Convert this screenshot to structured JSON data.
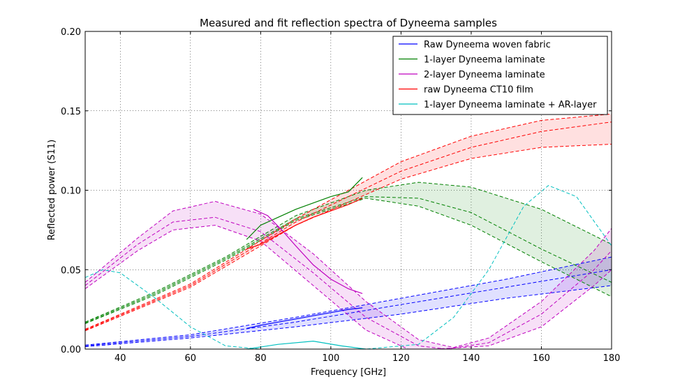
{
  "chart_data": {
    "type": "line",
    "title": "Measured and fit reflection spectra of Dyneema samples",
    "xlabel": "Frequency [GHz]",
    "ylabel": "Reflected power (S11)",
    "xlim": [
      30,
      180
    ],
    "ylim": [
      0,
      0.2
    ],
    "xticks": [
      "40",
      "60",
      "80",
      "100",
      "120",
      "140",
      "160",
      "180"
    ],
    "yticks": [
      "0.00",
      "0.05",
      "0.10",
      "0.15",
      "0.20"
    ],
    "grid": true,
    "legend_position": "top-right",
    "series": [
      {
        "name": "Raw Dyneema woven fabric",
        "color": "#0000ff",
        "measured": [
          [
            76,
            0.013
          ],
          [
            80,
            0.015
          ],
          [
            85,
            0.017
          ],
          [
            90,
            0.019
          ],
          [
            95,
            0.021
          ],
          [
            100,
            0.023
          ],
          [
            105,
            0.025
          ],
          [
            109,
            0.026
          ]
        ],
        "fit_upper": [
          [
            30,
            0.0025
          ],
          [
            60,
            0.009
          ],
          [
            90,
            0.02
          ],
          [
            120,
            0.032
          ],
          [
            150,
            0.044
          ],
          [
            180,
            0.058
          ]
        ],
        "fit_mid": [
          [
            30,
            0.002
          ],
          [
            60,
            0.008
          ],
          [
            90,
            0.017
          ],
          [
            120,
            0.028
          ],
          [
            150,
            0.039
          ],
          [
            180,
            0.05
          ]
        ],
        "fit_lower": [
          [
            30,
            0.0015
          ],
          [
            60,
            0.007
          ],
          [
            90,
            0.014
          ],
          [
            120,
            0.022
          ],
          [
            150,
            0.032
          ],
          [
            180,
            0.04
          ]
        ]
      },
      {
        "name": "1-layer Dyneema laminate",
        "color": "#008000",
        "measured": [
          [
            76,
            0.069
          ],
          [
            80,
            0.078
          ],
          [
            85,
            0.083
          ],
          [
            90,
            0.088
          ],
          [
            95,
            0.092
          ],
          [
            100,
            0.096
          ],
          [
            105,
            0.099
          ],
          [
            109,
            0.108
          ]
        ],
        "fit_upper": [
          [
            30,
            0.017
          ],
          [
            50,
            0.036
          ],
          [
            70,
            0.058
          ],
          [
            90,
            0.084
          ],
          [
            110,
            0.1
          ],
          [
            125,
            0.105
          ],
          [
            140,
            0.102
          ],
          [
            160,
            0.088
          ],
          [
            180,
            0.066
          ]
        ],
        "fit_mid": [
          [
            30,
            0.0165
          ],
          [
            50,
            0.035
          ],
          [
            70,
            0.057
          ],
          [
            90,
            0.082
          ],
          [
            110,
            0.096
          ],
          [
            125,
            0.095
          ],
          [
            140,
            0.086
          ],
          [
            160,
            0.063
          ],
          [
            180,
            0.042
          ]
        ],
        "fit_lower": [
          [
            30,
            0.016
          ],
          [
            50,
            0.034
          ],
          [
            70,
            0.056
          ],
          [
            90,
            0.081
          ],
          [
            110,
            0.095
          ],
          [
            125,
            0.09
          ],
          [
            140,
            0.078
          ],
          [
            160,
            0.055
          ],
          [
            180,
            0.033
          ]
        ]
      },
      {
        "name": "2-layer Dyneema laminate",
        "color": "#bf00bf",
        "measured": [
          [
            78,
            0.088
          ],
          [
            82,
            0.084
          ],
          [
            86,
            0.075
          ],
          [
            90,
            0.065
          ],
          [
            95,
            0.053
          ],
          [
            100,
            0.044
          ],
          [
            105,
            0.038
          ],
          [
            109,
            0.035
          ]
        ],
        "fit_upper": [
          [
            30,
            0.042
          ],
          [
            45,
            0.07
          ],
          [
            55,
            0.087
          ],
          [
            67,
            0.093
          ],
          [
            80,
            0.085
          ],
          [
            95,
            0.06
          ],
          [
            110,
            0.03
          ],
          [
            125,
            0.006
          ],
          [
            135,
            0.001
          ],
          [
            145,
            0.007
          ],
          [
            160,
            0.03
          ],
          [
            175,
            0.062
          ],
          [
            180,
            0.076
          ]
        ],
        "fit_mid": [
          [
            30,
            0.04
          ],
          [
            45,
            0.066
          ],
          [
            55,
            0.08
          ],
          [
            67,
            0.083
          ],
          [
            80,
            0.074
          ],
          [
            95,
            0.048
          ],
          [
            110,
            0.02
          ],
          [
            125,
            0.002
          ],
          [
            133,
            0.0
          ],
          [
            145,
            0.004
          ],
          [
            160,
            0.022
          ],
          [
            175,
            0.05
          ],
          [
            180,
            0.062
          ]
        ],
        "fit_lower": [
          [
            30,
            0.038
          ],
          [
            45,
            0.062
          ],
          [
            55,
            0.075
          ],
          [
            67,
            0.078
          ],
          [
            80,
            0.068
          ],
          [
            95,
            0.04
          ],
          [
            110,
            0.012
          ],
          [
            122,
            0.0
          ],
          [
            130,
            0.0
          ],
          [
            145,
            0.002
          ],
          [
            160,
            0.014
          ],
          [
            175,
            0.04
          ],
          [
            180,
            0.05
          ]
        ]
      },
      {
        "name": "raw Dyneema CT10 film",
        "color": "#ff0000",
        "measured": [
          [
            76,
            0.063
          ],
          [
            80,
            0.066
          ],
          [
            85,
            0.072
          ],
          [
            90,
            0.078
          ],
          [
            95,
            0.083
          ],
          [
            100,
            0.087
          ],
          [
            105,
            0.091
          ],
          [
            109,
            0.095
          ]
        ],
        "fit_upper": [
          [
            30,
            0.0125
          ],
          [
            60,
            0.041
          ],
          [
            90,
            0.082
          ],
          [
            120,
            0.118
          ],
          [
            140,
            0.134
          ],
          [
            160,
            0.144
          ],
          [
            180,
            0.148
          ]
        ],
        "fit_mid": [
          [
            30,
            0.012
          ],
          [
            60,
            0.04
          ],
          [
            90,
            0.08
          ],
          [
            120,
            0.112
          ],
          [
            140,
            0.127
          ],
          [
            160,
            0.137
          ],
          [
            180,
            0.143
          ]
        ],
        "fit_lower": [
          [
            30,
            0.0115
          ],
          [
            60,
            0.039
          ],
          [
            90,
            0.078
          ],
          [
            120,
            0.107
          ],
          [
            140,
            0.12
          ],
          [
            160,
            0.127
          ],
          [
            180,
            0.129
          ]
        ]
      },
      {
        "name": "1-layer Dyneema laminate + AR-layer",
        "color": "#00bfbf",
        "measured": [
          [
            76,
            0.0
          ],
          [
            85,
            0.003
          ],
          [
            95,
            0.005
          ],
          [
            103,
            0.002
          ],
          [
            110,
            0.0
          ]
        ],
        "fit_upper": [],
        "fit_mid": [
          [
            30,
            0.045
          ],
          [
            35,
            0.05
          ],
          [
            40,
            0.048
          ],
          [
            50,
            0.032
          ],
          [
            60,
            0.014
          ],
          [
            70,
            0.002
          ],
          [
            80,
            0.0
          ],
          [
            110,
            0.0
          ],
          [
            125,
            0.003
          ],
          [
            135,
            0.02
          ],
          [
            145,
            0.05
          ],
          [
            155,
            0.09
          ],
          [
            162,
            0.103
          ],
          [
            170,
            0.096
          ],
          [
            180,
            0.065
          ]
        ],
        "fit_lower": []
      }
    ]
  }
}
